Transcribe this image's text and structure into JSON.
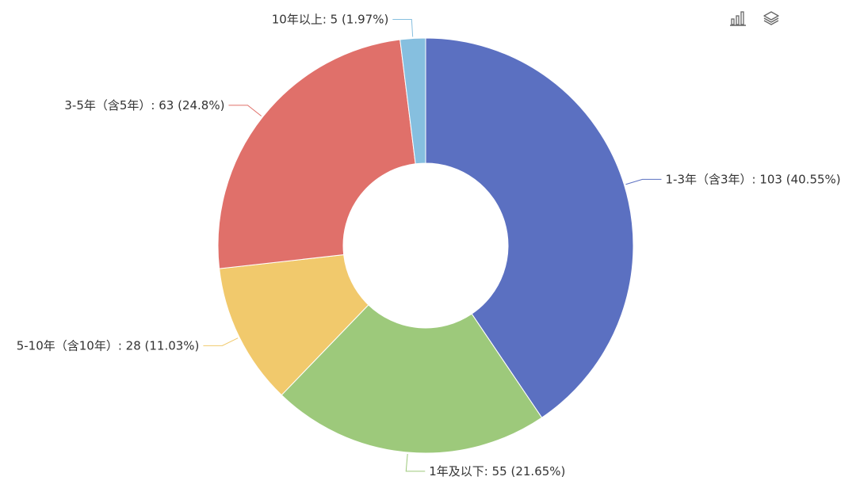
{
  "toolbar": {
    "icons": [
      "bar-chart-icon",
      "layers-icon"
    ]
  },
  "chart_data": {
    "type": "pie",
    "variant": "donut",
    "start_angle_deg": 90,
    "direction": "clockwise",
    "label_format": "{name}: {value} ({percent}%)",
    "slices": [
      {
        "name": "1-3年（含3年）",
        "value": 103,
        "percent": "40.55",
        "color": "#5b70c1",
        "label_side": "right"
      },
      {
        "name": "1年及以下",
        "value": 55,
        "percent": "21.65",
        "color": "#9dc97b",
        "label_side": "right"
      },
      {
        "name": "5-10年（含10年）",
        "value": 28,
        "percent": "11.03",
        "color": "#f1c96c",
        "label_side": "left"
      },
      {
        "name": "3-5年（含5年）",
        "value": 63,
        "percent": "24.8",
        "color": "#e0706a",
        "label_side": "left"
      },
      {
        "name": "10年以上",
        "value": 5,
        "percent": "1.97",
        "color": "#86bfdf",
        "label_side": "left"
      }
    ]
  }
}
